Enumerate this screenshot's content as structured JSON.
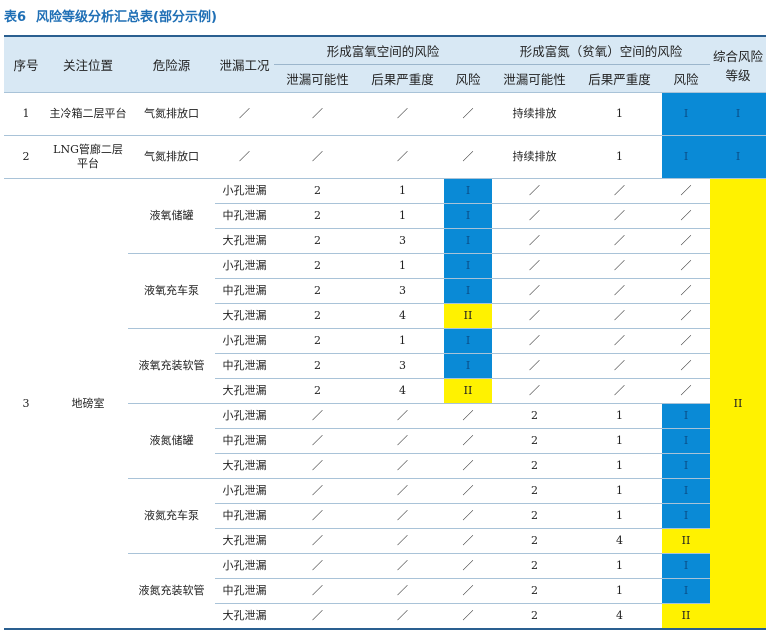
{
  "caption": {
    "num": "表6",
    "title": "风险等级分析汇总表(部分示例)"
  },
  "headers": {
    "seq": "序号",
    "location": "关注位置",
    "source": "危险源",
    "leak": "泄漏工况",
    "group_o2": "形成富氧空间的风险",
    "group_n2": "形成富氮（贫氧）空间的风险",
    "possibility": "泄漏可能性",
    "severity": "后果严重度",
    "risk": "风险",
    "overall": "综合风险等级"
  },
  "rows": [
    {
      "seq": "1",
      "location": "主冷箱二层平台",
      "source": "气氮排放口",
      "leak": "／",
      "o2": [
        "／",
        "／",
        "／"
      ],
      "n2": [
        "持续排放",
        "1",
        "I"
      ],
      "overall": "I"
    },
    {
      "seq": "2",
      "location": "LNG管廊二层平台",
      "source": "气氮排放口",
      "leak": "／",
      "o2": [
        "／",
        "／",
        "／"
      ],
      "n2": [
        "持续排放",
        "1",
        "I"
      ],
      "overall": "I"
    }
  ],
  "room": {
    "seq": "3",
    "location": "地磅室",
    "overall": "II",
    "groups": [
      {
        "source": "液氧储罐",
        "items": [
          {
            "leak": "小孔泄漏",
            "o2": [
              "2",
              "1",
              "I"
            ],
            "n2": [
              "／",
              "／",
              "／"
            ]
          },
          {
            "leak": "中孔泄漏",
            "o2": [
              "2",
              "1",
              "I"
            ],
            "n2": [
              "／",
              "／",
              "／"
            ]
          },
          {
            "leak": "大孔泄漏",
            "o2": [
              "2",
              "3",
              "I"
            ],
            "n2": [
              "／",
              "／",
              "／"
            ]
          }
        ]
      },
      {
        "source": "液氧充车泵",
        "items": [
          {
            "leak": "小孔泄漏",
            "o2": [
              "2",
              "1",
              "I"
            ],
            "n2": [
              "／",
              "／",
              "／"
            ]
          },
          {
            "leak": "中孔泄漏",
            "o2": [
              "2",
              "3",
              "I"
            ],
            "n2": [
              "／",
              "／",
              "／"
            ]
          },
          {
            "leak": "大孔泄漏",
            "o2": [
              "2",
              "4",
              "II"
            ],
            "n2": [
              "／",
              "／",
              "／"
            ]
          }
        ]
      },
      {
        "source": "液氧充装软管",
        "items": [
          {
            "leak": "小孔泄漏",
            "o2": [
              "2",
              "1",
              "I"
            ],
            "n2": [
              "／",
              "／",
              "／"
            ]
          },
          {
            "leak": "中孔泄漏",
            "o2": [
              "2",
              "3",
              "I"
            ],
            "n2": [
              "／",
              "／",
              "／"
            ]
          },
          {
            "leak": "大孔泄漏",
            "o2": [
              "2",
              "4",
              "II"
            ],
            "n2": [
              "／",
              "／",
              "／"
            ]
          }
        ]
      },
      {
        "source": "液氮储罐",
        "items": [
          {
            "leak": "小孔泄漏",
            "o2": [
              "／",
              "／",
              "／"
            ],
            "n2": [
              "2",
              "1",
              "I"
            ]
          },
          {
            "leak": "中孔泄漏",
            "o2": [
              "／",
              "／",
              "／"
            ],
            "n2": [
              "2",
              "1",
              "I"
            ]
          },
          {
            "leak": "大孔泄漏",
            "o2": [
              "／",
              "／",
              "／"
            ],
            "n2": [
              "2",
              "1",
              "I"
            ]
          }
        ]
      },
      {
        "source": "液氮充车泵",
        "items": [
          {
            "leak": "小孔泄漏",
            "o2": [
              "／",
              "／",
              "／"
            ],
            "n2": [
              "2",
              "1",
              "I"
            ]
          },
          {
            "leak": "中孔泄漏",
            "o2": [
              "／",
              "／",
              "／"
            ],
            "n2": [
              "2",
              "1",
              "I"
            ]
          },
          {
            "leak": "大孔泄漏",
            "o2": [
              "／",
              "／",
              "／"
            ],
            "n2": [
              "2",
              "4",
              "II"
            ]
          }
        ]
      },
      {
        "source": "液氮充装软管",
        "items": [
          {
            "leak": "小孔泄漏",
            "o2": [
              "／",
              "／",
              "／"
            ],
            "n2": [
              "2",
              "1",
              "I"
            ]
          },
          {
            "leak": "中孔泄漏",
            "o2": [
              "／",
              "／",
              "／"
            ],
            "n2": [
              "2",
              "1",
              "I"
            ]
          },
          {
            "leak": "大孔泄漏",
            "o2": [
              "／",
              "／",
              "／"
            ],
            "n2": [
              "2",
              "4",
              "II"
            ]
          }
        ]
      }
    ]
  },
  "colors": {
    "level_I": "#0a8ad6",
    "level_II": "#fff200",
    "header_bg": "#d8e8f4",
    "accent": "#1f6fb5"
  }
}
